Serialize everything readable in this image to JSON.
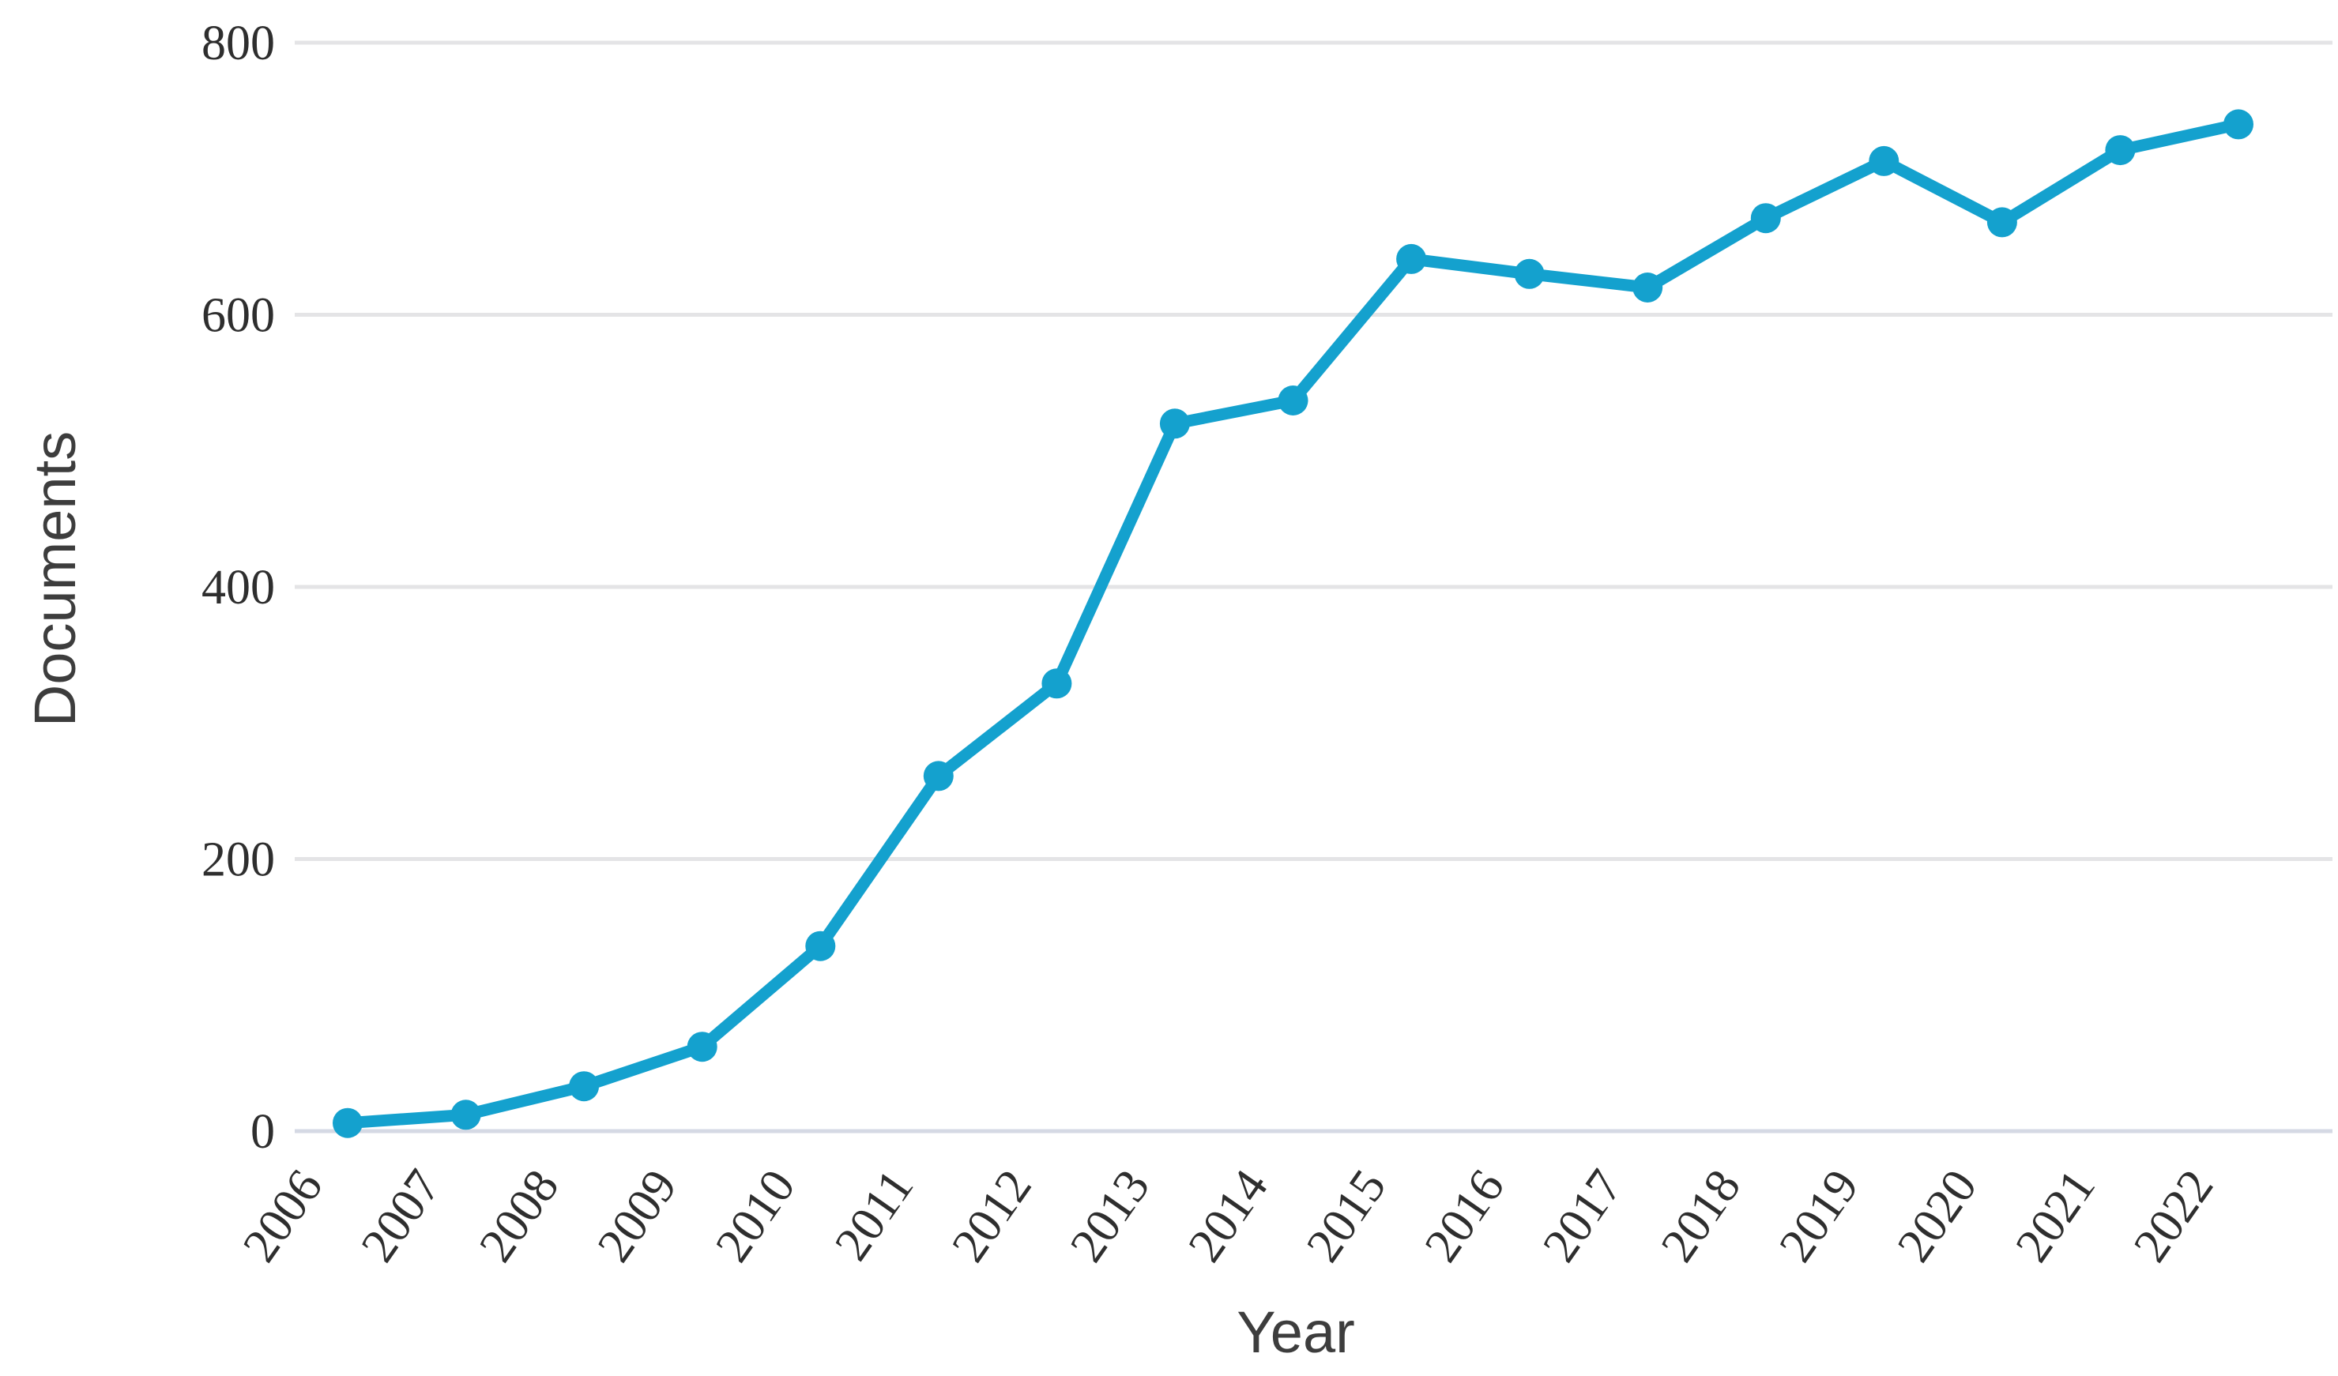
{
  "chart_data": {
    "type": "line",
    "title": "",
    "xlabel": "Year",
    "ylabel": "Documents",
    "categories": [
      "2006",
      "2007",
      "2008",
      "2009",
      "2010",
      "2011",
      "2012",
      "2013",
      "2014",
      "2015",
      "2016",
      "2017",
      "2018",
      "2019",
      "2020",
      "2021",
      "2022"
    ],
    "series": [
      {
        "name": "Documents",
        "values": [
          6,
          12,
          33,
          62,
          136,
          261,
          329,
          520,
          537,
          641,
          630,
          620,
          671,
          713,
          668,
          721,
          740
        ]
      }
    ],
    "yticks": [
      0,
      200,
      400,
      600,
      800
    ],
    "ylim": [
      0,
      800
    ],
    "grid": "horizontal",
    "legend_position": "none",
    "marker": "circle",
    "palette": {
      "line_color": "#14a1ce",
      "marker_color": "#14a1ce",
      "gridline_color": "#e4e4e6",
      "zero_line_color": "#d5d9e4",
      "tick_text_color": "#2e2e2e",
      "axis_title_color": "#3d3d3d",
      "background": "#ffffff"
    }
  }
}
